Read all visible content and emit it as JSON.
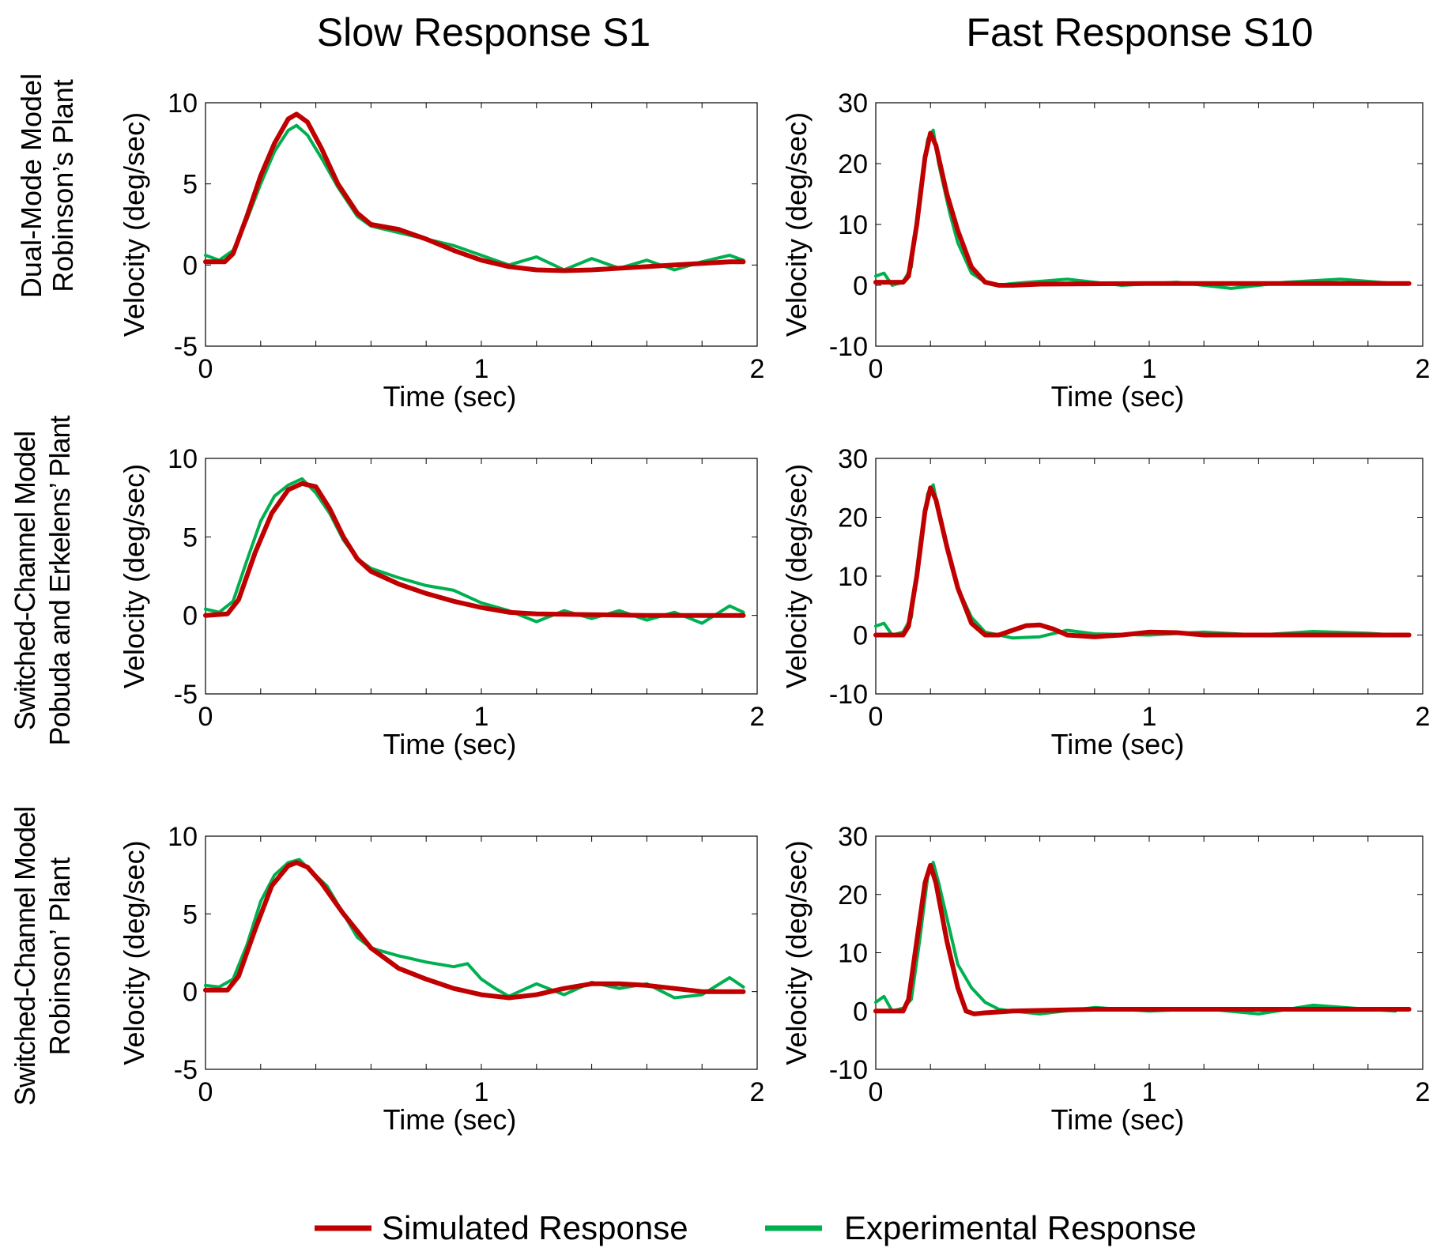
{
  "figure": {
    "column_titles": [
      "Slow Response S1",
      "Fast Response S10"
    ],
    "row_titles": [
      [
        "Dual-Mode Model",
        "Robinson’s Plant"
      ],
      [
        "Switched-Channel Model",
        "Pobuda and Erkelens’ Plant"
      ],
      [
        "Switched-Channel Model",
        "Robinson’ Plant"
      ]
    ],
    "legend": [
      {
        "label": "Simulated Response",
        "color": "#c00000"
      },
      {
        "label": "Experimental Response",
        "color": "#00b050"
      }
    ]
  },
  "colors": {
    "simulated": "#c00000",
    "experimental": "#00b050",
    "axis": "#000000"
  },
  "chart_data": [
    {
      "type": "line",
      "id": "slow-dual",
      "row": 0,
      "col": 0,
      "xlabel": "Time (sec)",
      "ylabel": "Velocity (deg/sec)",
      "xlim": [
        0,
        2
      ],
      "ylim": [
        -5,
        10
      ],
      "xticks": [
        "0",
        "1",
        "2"
      ],
      "yticks": [
        "-5",
        "0",
        "5",
        "10"
      ],
      "series": [
        {
          "name": "Simulated Response",
          "color": "#c00000",
          "x": [
            0,
            0.07,
            0.1,
            0.15,
            0.2,
            0.25,
            0.3,
            0.33,
            0.37,
            0.42,
            0.48,
            0.55,
            0.6,
            0.7,
            0.8,
            0.9,
            1.0,
            1.1,
            1.2,
            1.3,
            1.4,
            1.5,
            1.6,
            1.7,
            1.8,
            1.9,
            1.95
          ],
          "y": [
            0.2,
            0.2,
            0.7,
            3.0,
            5.5,
            7.5,
            9.0,
            9.3,
            8.8,
            7.2,
            5.0,
            3.2,
            2.5,
            2.2,
            1.6,
            0.9,
            0.3,
            -0.1,
            -0.3,
            -0.35,
            -0.3,
            -0.2,
            -0.1,
            0.0,
            0.1,
            0.2,
            0.2
          ]
        },
        {
          "name": "Experimental Response",
          "color": "#00b050",
          "x": [
            0,
            0.05,
            0.1,
            0.15,
            0.2,
            0.25,
            0.3,
            0.33,
            0.37,
            0.42,
            0.48,
            0.55,
            0.6,
            0.7,
            0.8,
            0.9,
            1.0,
            1.05,
            1.1,
            1.2,
            1.3,
            1.4,
            1.5,
            1.6,
            1.7,
            1.8,
            1.9,
            1.95
          ],
          "y": [
            0.6,
            0.3,
            0.9,
            2.8,
            5.0,
            7.0,
            8.3,
            8.6,
            8.0,
            6.6,
            4.8,
            3.0,
            2.4,
            2.0,
            1.6,
            1.2,
            0.6,
            0.3,
            0.0,
            0.5,
            -0.3,
            0.4,
            -0.2,
            0.3,
            -0.3,
            0.2,
            0.6,
            0.3
          ]
        }
      ]
    },
    {
      "type": "line",
      "id": "fast-dual",
      "row": 0,
      "col": 1,
      "xlabel": "Time (sec)",
      "ylabel": "Velocity (deg/sec)",
      "xlim": [
        0,
        2
      ],
      "ylim": [
        -10,
        30
      ],
      "xticks": [
        "0",
        "1",
        "2"
      ],
      "yticks": [
        "-10",
        "0",
        "10",
        "20",
        "30"
      ],
      "series": [
        {
          "name": "Simulated Response",
          "color": "#c00000",
          "x": [
            0,
            0.1,
            0.12,
            0.15,
            0.18,
            0.2,
            0.22,
            0.26,
            0.3,
            0.35,
            0.4,
            0.45,
            0.5,
            0.6,
            1.0,
            1.5,
            1.95
          ],
          "y": [
            0.5,
            0.5,
            1.5,
            10.0,
            21.0,
            25.0,
            23.0,
            15.0,
            9.0,
            3.0,
            0.5,
            0.0,
            0.0,
            0.2,
            0.3,
            0.3,
            0.3
          ]
        },
        {
          "name": "Experimental Response",
          "color": "#00b050",
          "x": [
            0,
            0.03,
            0.06,
            0.1,
            0.13,
            0.16,
            0.19,
            0.21,
            0.23,
            0.27,
            0.3,
            0.35,
            0.4,
            0.45,
            0.5,
            0.7,
            0.9,
            1.1,
            1.3,
            1.5,
            1.7,
            1.9
          ],
          "y": [
            1.5,
            2.0,
            0.0,
            0.5,
            3.0,
            15.0,
            24.0,
            25.5,
            20.0,
            12.0,
            7.0,
            2.0,
            0.5,
            0.0,
            0.3,
            1.0,
            0.0,
            0.5,
            -0.5,
            0.5,
            1.0,
            0.3
          ]
        }
      ]
    },
    {
      "type": "line",
      "id": "slow-pobuda",
      "row": 1,
      "col": 0,
      "xlabel": "Time (sec)",
      "ylabel": "Velocity (deg/sec)",
      "xlim": [
        0,
        2
      ],
      "ylim": [
        -5,
        10
      ],
      "xticks": [
        "0",
        "1",
        "2"
      ],
      "yticks": [
        "-5",
        "0",
        "5",
        "10"
      ],
      "series": [
        {
          "name": "Simulated Response",
          "color": "#c00000",
          "x": [
            0,
            0.08,
            0.12,
            0.18,
            0.24,
            0.3,
            0.35,
            0.4,
            0.45,
            0.5,
            0.55,
            0.6,
            0.7,
            0.8,
            0.9,
            1.0,
            1.1,
            1.2,
            1.4,
            1.6,
            1.8,
            1.95
          ],
          "y": [
            0.0,
            0.1,
            1.0,
            4.0,
            6.5,
            8.0,
            8.4,
            8.2,
            6.8,
            5.0,
            3.6,
            2.8,
            2.0,
            1.4,
            0.9,
            0.5,
            0.2,
            0.1,
            0.05,
            0.0,
            0.0,
            0.0
          ]
        },
        {
          "name": "Experimental Response",
          "color": "#00b050",
          "x": [
            0,
            0.05,
            0.1,
            0.15,
            0.2,
            0.25,
            0.3,
            0.35,
            0.4,
            0.45,
            0.5,
            0.55,
            0.6,
            0.7,
            0.8,
            0.9,
            1.0,
            1.1,
            1.2,
            1.3,
            1.4,
            1.5,
            1.6,
            1.7,
            1.8,
            1.9,
            1.95
          ],
          "y": [
            0.4,
            0.2,
            0.9,
            3.5,
            6.0,
            7.6,
            8.3,
            8.7,
            7.8,
            6.5,
            4.8,
            3.6,
            3.0,
            2.4,
            1.9,
            1.6,
            0.8,
            0.3,
            -0.4,
            0.3,
            -0.2,
            0.3,
            -0.3,
            0.2,
            -0.5,
            0.6,
            0.2
          ]
        }
      ]
    },
    {
      "type": "line",
      "id": "fast-pobuda",
      "row": 1,
      "col": 1,
      "xlabel": "Time (sec)",
      "ylabel": "Velocity (deg/sec)",
      "xlim": [
        0,
        2
      ],
      "ylim": [
        -10,
        30
      ],
      "xticks": [
        "0",
        "1",
        "2"
      ],
      "yticks": [
        "-10",
        "0",
        "10",
        "20",
        "30"
      ],
      "series": [
        {
          "name": "Simulated Response",
          "color": "#c00000",
          "x": [
            0,
            0.1,
            0.12,
            0.15,
            0.18,
            0.2,
            0.22,
            0.26,
            0.3,
            0.35,
            0.4,
            0.45,
            0.5,
            0.55,
            0.6,
            0.65,
            0.7,
            0.8,
            0.9,
            1.0,
            1.1,
            1.2,
            1.5,
            1.95
          ],
          "y": [
            0.0,
            0.0,
            1.5,
            10.0,
            21.0,
            25.0,
            23.0,
            15.0,
            8.0,
            2.0,
            0.0,
            0.0,
            0.8,
            1.6,
            1.7,
            1.0,
            0.0,
            -0.3,
            0.0,
            0.5,
            0.4,
            0.0,
            0.0,
            0.0
          ]
        },
        {
          "name": "Experimental Response",
          "color": "#00b050",
          "x": [
            0,
            0.03,
            0.06,
            0.1,
            0.13,
            0.16,
            0.19,
            0.21,
            0.23,
            0.27,
            0.3,
            0.35,
            0.4,
            0.45,
            0.5,
            0.6,
            0.7,
            0.8,
            1.0,
            1.2,
            1.4,
            1.6,
            1.8,
            1.9
          ],
          "y": [
            1.5,
            2.0,
            0.0,
            0.5,
            3.0,
            15.0,
            24.0,
            25.5,
            21.0,
            13.0,
            8.0,
            3.0,
            0.5,
            0.0,
            -0.5,
            -0.3,
            0.8,
            0.2,
            0.0,
            0.5,
            0.0,
            0.6,
            0.3,
            0.0
          ]
        }
      ]
    },
    {
      "type": "line",
      "id": "slow-switched-robinson",
      "row": 2,
      "col": 0,
      "xlabel": "Time (sec)",
      "ylabel": "Velocity (deg/sec)",
      "xlim": [
        0,
        2
      ],
      "ylim": [
        -5,
        10
      ],
      "xticks": [
        "0",
        "1",
        "2"
      ],
      "yticks": [
        "-5",
        "0",
        "5",
        "10"
      ],
      "series": [
        {
          "name": "Simulated Response",
          "color": "#c00000",
          "x": [
            0,
            0.08,
            0.12,
            0.18,
            0.24,
            0.3,
            0.33,
            0.37,
            0.42,
            0.5,
            0.6,
            0.7,
            0.8,
            0.9,
            1.0,
            1.1,
            1.2,
            1.3,
            1.4,
            1.5,
            1.6,
            1.7,
            1.8,
            1.95
          ],
          "y": [
            0.1,
            0.1,
            1.0,
            4.0,
            6.8,
            8.1,
            8.3,
            8.0,
            7.0,
            5.0,
            2.8,
            1.5,
            0.8,
            0.2,
            -0.2,
            -0.4,
            -0.2,
            0.2,
            0.5,
            0.5,
            0.4,
            0.2,
            0.0,
            0.0
          ]
        },
        {
          "name": "Experimental Response",
          "color": "#00b050",
          "x": [
            0,
            0.05,
            0.1,
            0.15,
            0.2,
            0.25,
            0.3,
            0.34,
            0.38,
            0.44,
            0.5,
            0.55,
            0.6,
            0.7,
            0.8,
            0.9,
            0.95,
            1.0,
            1.05,
            1.1,
            1.2,
            1.3,
            1.4,
            1.5,
            1.6,
            1.7,
            1.8,
            1.9,
            1.95
          ],
          "y": [
            0.4,
            0.3,
            0.8,
            3.0,
            5.8,
            7.5,
            8.3,
            8.5,
            7.8,
            6.8,
            5.0,
            3.5,
            2.8,
            2.3,
            1.9,
            1.6,
            1.8,
            0.8,
            0.2,
            -0.3,
            0.5,
            -0.2,
            0.6,
            0.2,
            0.5,
            -0.4,
            -0.2,
            0.9,
            0.3
          ]
        }
      ]
    },
    {
      "type": "line",
      "id": "fast-switched-robinson",
      "row": 2,
      "col": 1,
      "xlabel": "Time (sec)",
      "ylabel": "Velocity (deg/sec)",
      "xlim": [
        0,
        2
      ],
      "ylim": [
        -10,
        30
      ],
      "xticks": [
        "0",
        "1",
        "2"
      ],
      "yticks": [
        "-10",
        "0",
        "10",
        "20",
        "30"
      ],
      "series": [
        {
          "name": "Simulated Response",
          "color": "#c00000",
          "x": [
            0,
            0.1,
            0.12,
            0.15,
            0.18,
            0.2,
            0.22,
            0.26,
            0.3,
            0.33,
            0.36,
            0.4,
            0.5,
            0.8,
            1.2,
            1.6,
            1.95
          ],
          "y": [
            0.0,
            0.0,
            2.0,
            12.0,
            22.0,
            25.0,
            22.0,
            12.0,
            4.0,
            0.0,
            -0.5,
            -0.3,
            0.0,
            0.3,
            0.3,
            0.3,
            0.3
          ]
        },
        {
          "name": "Experimental Response",
          "color": "#00b050",
          "x": [
            0,
            0.03,
            0.06,
            0.1,
            0.13,
            0.16,
            0.19,
            0.21,
            0.23,
            0.27,
            0.3,
            0.35,
            0.4,
            0.45,
            0.5,
            0.6,
            0.8,
            1.0,
            1.2,
            1.4,
            1.6,
            1.8,
            1.9
          ],
          "y": [
            1.5,
            2.5,
            0.0,
            0.5,
            2.0,
            12.0,
            23.0,
            25.5,
            22.0,
            14.0,
            8.0,
            4.0,
            1.5,
            0.3,
            0.0,
            -0.5,
            0.6,
            0.0,
            0.4,
            -0.5,
            1.0,
            0.3,
            0.0
          ]
        }
      ]
    }
  ]
}
